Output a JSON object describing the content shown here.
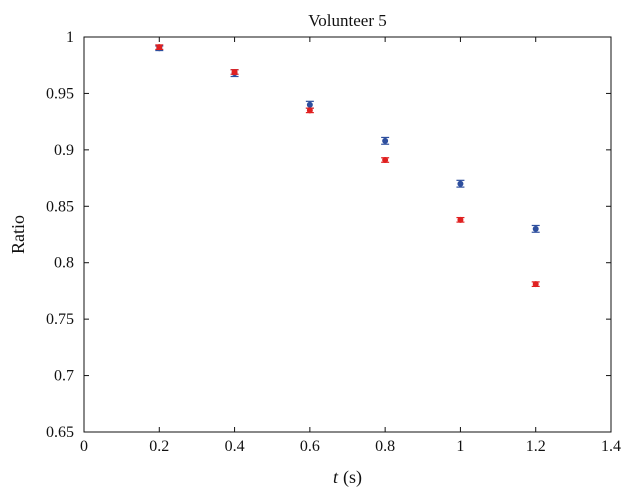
{
  "chart_data": {
    "type": "scatter",
    "title": "Volunteer 5",
    "xlabel_var": "t",
    "xlabel_unit": "(s)",
    "ylabel": "Ratio",
    "xlim": [
      0,
      1.4
    ],
    "ylim": [
      0.65,
      1.0
    ],
    "x_ticks": [
      0,
      0.2,
      0.4,
      0.6,
      0.8,
      1.0,
      1.2,
      1.4
    ],
    "x_tick_labels": [
      "0",
      "0.2",
      "0.4",
      "0.6",
      "0.8",
      "1",
      "1.2",
      "1.4"
    ],
    "y_ticks": [
      0.65,
      0.7,
      0.75,
      0.8,
      0.85,
      0.9,
      0.95,
      1.0
    ],
    "y_tick_labels": [
      "0.65",
      "0.7",
      "0.75",
      "0.8",
      "0.85",
      "0.9",
      "0.95",
      "1"
    ],
    "grid": false,
    "legend": "none",
    "series": [
      {
        "color": "#2e4f9e",
        "x": [
          0.2,
          0.4,
          0.6,
          0.8,
          1.0,
          1.2
        ],
        "y": [
          0.99,
          0.968,
          0.94,
          0.908,
          0.87,
          0.83
        ],
        "err": [
          0.002,
          0.003,
          0.003,
          0.003,
          0.003,
          0.003
        ]
      },
      {
        "color": "#e02020",
        "x": [
          0.2,
          0.4,
          0.6,
          0.8,
          1.0,
          1.2
        ],
        "y": [
          0.991,
          0.969,
          0.935,
          0.891,
          0.838,
          0.781
        ],
        "err": [
          0.002,
          0.002,
          0.002,
          0.002,
          0.002,
          0.002
        ]
      }
    ]
  }
}
